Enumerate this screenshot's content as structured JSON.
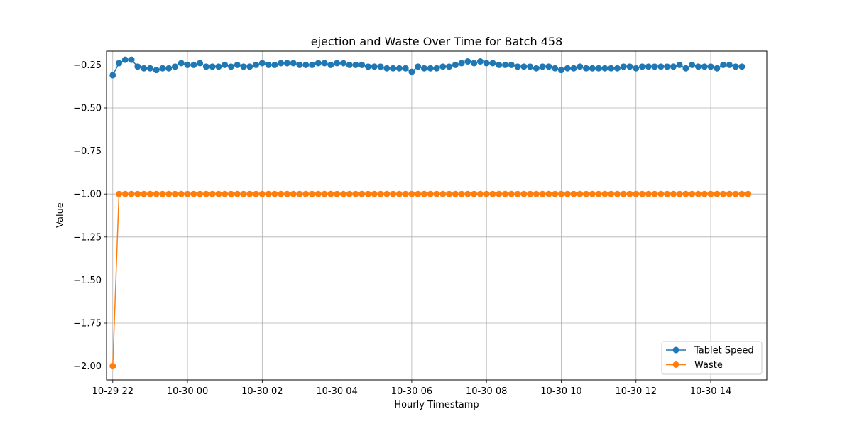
{
  "chart_data": {
    "type": "line",
    "title": "ejection and Waste Over Time for Batch 458",
    "xlabel": "Hourly Timestamp",
    "ylabel": "Value",
    "x_start": "2024-10-29T22:00",
    "x_step_minutes": 10,
    "xlim": [
      "2024-10-29T21:50",
      "2024-10-30T15:30"
    ],
    "ylim": [
      -2.08,
      -0.17
    ],
    "x_ticks": [
      {
        "t": "2024-10-29T22:00",
        "label": "10-29 22"
      },
      {
        "t": "2024-10-30T00:00",
        "label": "10-30 00"
      },
      {
        "t": "2024-10-30T02:00",
        "label": "10-30 02"
      },
      {
        "t": "2024-10-30T04:00",
        "label": "10-30 04"
      },
      {
        "t": "2024-10-30T06:00",
        "label": "10-30 06"
      },
      {
        "t": "2024-10-30T08:00",
        "label": "10-30 08"
      },
      {
        "t": "2024-10-30T10:00",
        "label": "10-30 10"
      },
      {
        "t": "2024-10-30T12:00",
        "label": "10-30 12"
      },
      {
        "t": "2024-10-30T14:00",
        "label": "10-30 14"
      }
    ],
    "y_ticks": [
      {
        "v": -0.25,
        "label": "−0.25"
      },
      {
        "v": -0.5,
        "label": "−0.50"
      },
      {
        "v": -0.75,
        "label": "−0.75"
      },
      {
        "v": -1.0,
        "label": "−1.00"
      },
      {
        "v": -1.25,
        "label": "−1.25"
      },
      {
        "v": -1.5,
        "label": "−1.50"
      },
      {
        "v": -1.75,
        "label": "−1.75"
      },
      {
        "v": -2.0,
        "label": "−2.00"
      }
    ],
    "grid": true,
    "legend_position": "lower-right",
    "series": [
      {
        "name": "Tablet Speed",
        "color": "#1f77b4",
        "values": [
          -0.31,
          -0.24,
          -0.22,
          -0.22,
          -0.26,
          -0.27,
          -0.27,
          -0.28,
          -0.27,
          -0.27,
          -0.26,
          -0.24,
          -0.25,
          -0.25,
          -0.24,
          -0.26,
          -0.26,
          -0.26,
          -0.25,
          -0.26,
          -0.25,
          -0.26,
          -0.26,
          -0.25,
          -0.24,
          -0.25,
          -0.25,
          -0.24,
          -0.24,
          -0.24,
          -0.25,
          -0.25,
          -0.25,
          -0.24,
          -0.24,
          -0.25,
          -0.24,
          -0.24,
          -0.25,
          -0.25,
          -0.25,
          -0.26,
          -0.26,
          -0.26,
          -0.27,
          -0.27,
          -0.27,
          -0.27,
          -0.29,
          -0.26,
          -0.27,
          -0.27,
          -0.27,
          -0.26,
          -0.26,
          -0.25,
          -0.24,
          -0.23,
          -0.24,
          -0.23,
          -0.24,
          -0.24,
          -0.25,
          -0.25,
          -0.25,
          -0.26,
          -0.26,
          -0.26,
          -0.27,
          -0.26,
          -0.26,
          -0.27,
          -0.28,
          -0.27,
          -0.27,
          -0.26,
          -0.27,
          -0.27,
          -0.27,
          -0.27,
          -0.27,
          -0.27,
          -0.26,
          -0.26,
          -0.27,
          -0.26,
          -0.26,
          -0.26,
          -0.26,
          -0.26,
          -0.26,
          -0.25,
          -0.27,
          -0.25,
          -0.26,
          -0.26,
          -0.26,
          -0.27,
          -0.25,
          -0.25,
          -0.26,
          -0.26
        ]
      },
      {
        "name": "Waste",
        "color": "#ff7f0e",
        "values": [
          -2.0,
          -1.0,
          -1.0,
          -1.0,
          -1.0,
          -1.0,
          -1.0,
          -1.0,
          -1.0,
          -1.0,
          -1.0,
          -1.0,
          -1.0,
          -1.0,
          -1.0,
          -1.0,
          -1.0,
          -1.0,
          -1.0,
          -1.0,
          -1.0,
          -1.0,
          -1.0,
          -1.0,
          -1.0,
          -1.0,
          -1.0,
          -1.0,
          -1.0,
          -1.0,
          -1.0,
          -1.0,
          -1.0,
          -1.0,
          -1.0,
          -1.0,
          -1.0,
          -1.0,
          -1.0,
          -1.0,
          -1.0,
          -1.0,
          -1.0,
          -1.0,
          -1.0,
          -1.0,
          -1.0,
          -1.0,
          -1.0,
          -1.0,
          -1.0,
          -1.0,
          -1.0,
          -1.0,
          -1.0,
          -1.0,
          -1.0,
          -1.0,
          -1.0,
          -1.0,
          -1.0,
          -1.0,
          -1.0,
          -1.0,
          -1.0,
          -1.0,
          -1.0,
          -1.0,
          -1.0,
          -1.0,
          -1.0,
          -1.0,
          -1.0,
          -1.0,
          -1.0,
          -1.0,
          -1.0,
          -1.0,
          -1.0,
          -1.0,
          -1.0,
          -1.0,
          -1.0,
          -1.0,
          -1.0,
          -1.0,
          -1.0,
          -1.0,
          -1.0,
          -1.0,
          -1.0,
          -1.0,
          -1.0,
          -1.0,
          -1.0,
          -1.0,
          -1.0,
          -1.0,
          -1.0,
          -1.0,
          -1.0,
          -1.0,
          -1.0
        ]
      }
    ]
  }
}
